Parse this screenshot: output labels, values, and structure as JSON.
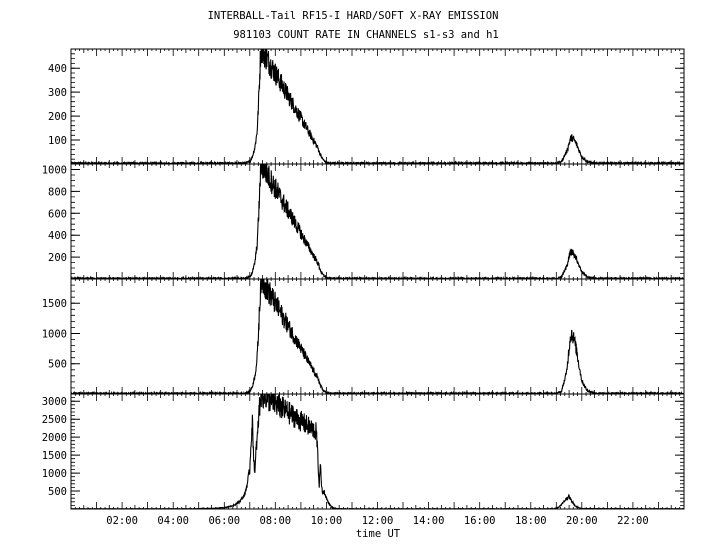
{
  "chart_data": {
    "type": "line",
    "title_line1": "INTERBALL-Tail RF15-I HARD/SOFT X-RAY EMISSION",
    "title_line2": "981103  COUNT RATE IN CHANNELS s1-s3 and h1",
    "xlabel": "time UT",
    "x_ticks": [
      {
        "value": 2,
        "label": "02:00"
      },
      {
        "value": 4,
        "label": "04:00"
      },
      {
        "value": 6,
        "label": "06:00"
      },
      {
        "value": 8,
        "label": "08:00"
      },
      {
        "value": 10,
        "label": "10:00"
      },
      {
        "value": 12,
        "label": "12:00"
      },
      {
        "value": 14,
        "label": "14:00"
      },
      {
        "value": 16,
        "label": "16:00"
      },
      {
        "value": 18,
        "label": "18:00"
      },
      {
        "value": 20,
        "label": "20:00"
      },
      {
        "value": 22,
        "label": "22:00"
      }
    ],
    "xlim": [
      0,
      24
    ],
    "panels": [
      {
        "ylim": [
          0,
          480
        ],
        "y_ticks": [
          100,
          200,
          300,
          400
        ],
        "minor_step": 20,
        "baseline": 3,
        "noise": 3,
        "series": {
          "x": [
            0.0,
            6.8,
            7.0,
            7.1,
            7.2,
            7.28,
            7.32,
            7.36,
            7.4,
            7.43,
            7.46,
            9.7,
            9.72,
            9.8,
            9.9,
            10.0,
            10.15,
            19.0,
            19.2,
            19.4,
            19.5,
            19.55,
            19.6,
            19.7,
            19.8,
            19.9,
            20.0,
            20.2,
            20.5,
            24.0
          ],
          "y": [
            3,
            3,
            10,
            30,
            70,
            130,
            200,
            300,
            400,
            480,
            480,
            60,
            50,
            30,
            15,
            6,
            3,
            3,
            10,
            50,
            85,
            105,
            110,
            100,
            80,
            55,
            30,
            10,
            3,
            3
          ]
        }
      },
      {
        "ylim": [
          0,
          1050
        ],
        "y_ticks": [
          200,
          400,
          600,
          800,
          1000
        ],
        "minor_step": 50,
        "baseline": 5,
        "noise": 5,
        "series": {
          "x": [
            0.0,
            6.8,
            7.0,
            7.1,
            7.2,
            7.28,
            7.32,
            7.36,
            7.4,
            7.43,
            7.46,
            9.7,
            9.72,
            9.8,
            9.9,
            10.0,
            10.15,
            19.0,
            19.2,
            19.4,
            19.5,
            19.55,
            19.6,
            19.7,
            19.8,
            19.9,
            20.0,
            20.2,
            20.5,
            24.0
          ],
          "y": [
            5,
            5,
            20,
            60,
            150,
            300,
            450,
            650,
            850,
            1050,
            1050,
            130,
            110,
            60,
            30,
            12,
            5,
            5,
            20,
            110,
            200,
            240,
            250,
            230,
            180,
            120,
            65,
            20,
            5,
            5
          ]
        }
      },
      {
        "ylim": [
          0,
          1900
        ],
        "y_ticks": [
          500,
          1000,
          1500
        ],
        "minor_step": 100,
        "baseline": 10,
        "noise": 10,
        "series": {
          "x": [
            0.0,
            6.8,
            7.0,
            7.1,
            7.2,
            7.28,
            7.32,
            7.36,
            7.4,
            7.43,
            7.46,
            9.7,
            9.72,
            9.8,
            9.9,
            10.0,
            10.15,
            19.0,
            19.2,
            19.4,
            19.5,
            19.55,
            19.6,
            19.7,
            19.8,
            19.9,
            20.0,
            20.2,
            20.5,
            24.0
          ],
          "y": [
            10,
            10,
            40,
            120,
            300,
            550,
            850,
            1200,
            1550,
            1900,
            1900,
            230,
            190,
            110,
            50,
            20,
            10,
            10,
            40,
            350,
            750,
            950,
            1000,
            900,
            700,
            450,
            220,
            60,
            10,
            10
          ]
        }
      },
      {
        "ylim": [
          0,
          3200
        ],
        "y_ticks": [
          500,
          1000,
          1500,
          2000,
          2500,
          3000
        ],
        "minor_step": 100,
        "baseline": 5,
        "noise": 5,
        "series": {
          "x": [
            0.0,
            4.5,
            5.5,
            6.0,
            6.3,
            6.6,
            6.8,
            6.9,
            7.0,
            7.05,
            7.1,
            7.15,
            7.2,
            7.25,
            7.3,
            7.35,
            7.4,
            7.43,
            7.46,
            9.6,
            9.62,
            9.68,
            9.72,
            9.76,
            9.8,
            9.85,
            9.9,
            10.0,
            10.1,
            10.2,
            10.3,
            10.5,
            18.9,
            19.1,
            19.3,
            19.4,
            19.5,
            19.6,
            19.75,
            20.0,
            24.0
          ],
          "y": [
            5,
            5,
            15,
            40,
            80,
            200,
            400,
            700,
            1100,
            1900,
            2400,
            1500,
            950,
            1700,
            2000,
            2600,
            3000,
            3200,
            3200,
            2150,
            2000,
            1200,
            600,
            1350,
            700,
            450,
            500,
            300,
            150,
            60,
            20,
            5,
            5,
            50,
            200,
            300,
            350,
            220,
            80,
            10,
            5
          ]
        }
      }
    ]
  }
}
